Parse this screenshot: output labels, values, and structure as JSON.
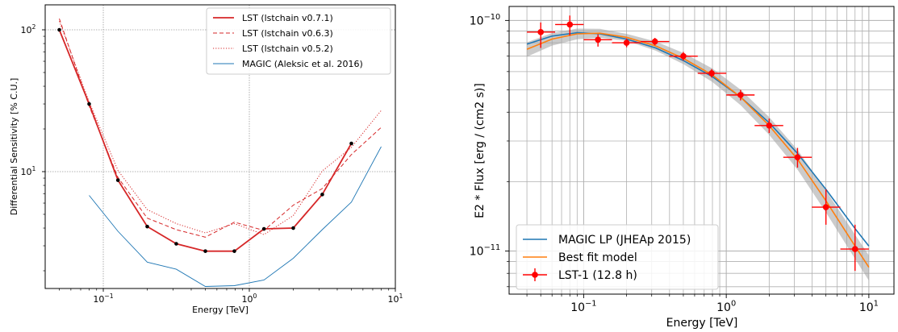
{
  "chart_data": [
    {
      "type": "line",
      "xlabel": "Energy [TeV]",
      "ylabel": "Differential Sensitivity [% C.U.]",
      "xscale": "log",
      "yscale": "log",
      "xlim": [
        0.04,
        10
      ],
      "ylim": [
        1.5,
        150
      ],
      "grid": true,
      "legend_position": "top-right",
      "x_ticks": [
        {
          "value": 0.1,
          "label": "10",
          "exp": "−1"
        },
        {
          "value": 1,
          "label": "10",
          "exp": "0"
        },
        {
          "value": 10,
          "label": "10",
          "exp": "1"
        }
      ],
      "y_ticks": [
        {
          "value": 10,
          "label": "10",
          "exp": "1"
        },
        {
          "value": 100,
          "label": "10",
          "exp": "2"
        }
      ],
      "series": [
        {
          "name": "LST (lstchain v0.7.1)",
          "color": "#d62728",
          "style": "solid",
          "markers": true,
          "x": [
            0.05,
            0.08,
            0.126,
            0.2,
            0.316,
            0.5,
            0.79,
            1.26,
            2.0,
            3.16,
            5.0
          ],
          "y": [
            100,
            30,
            8.7,
            4.1,
            3.1,
            2.75,
            2.75,
            3.95,
            4.0,
            6.9,
            15.8
          ]
        },
        {
          "name": "LST (lstchain v0.6.3)",
          "color": "#d62728",
          "style": "dashed",
          "markers": false,
          "x": [
            0.05,
            0.08,
            0.126,
            0.2,
            0.316,
            0.5,
            0.79,
            1.26,
            2.0,
            3.16,
            5.0,
            8.0
          ],
          "y": [
            120,
            29,
            9.1,
            4.7,
            3.9,
            3.45,
            4.4,
            3.85,
            5.8,
            7.6,
            13.2,
            20.5
          ]
        },
        {
          "name": "LST (lstchain v0.5.2)",
          "color": "#d62728",
          "style": "dotted",
          "markers": false,
          "x": [
            0.05,
            0.08,
            0.126,
            0.2,
            0.316,
            0.5,
            0.79,
            1.26,
            2.0,
            3.16,
            5.0,
            8.0
          ],
          "y": [
            115,
            31,
            10.2,
            5.4,
            4.3,
            3.7,
            4.3,
            3.6,
            4.9,
            10.1,
            14.8,
            27
          ]
        },
        {
          "name": "MAGIC (Aleksic et al. 2016)",
          "color": "#1f77b4",
          "style": "solid",
          "markers": false,
          "x": [
            0.08,
            0.126,
            0.2,
            0.316,
            0.5,
            0.79,
            1.26,
            2.0,
            3.16,
            5.0,
            8.0
          ],
          "y": [
            6.8,
            3.8,
            2.3,
            2.05,
            1.55,
            1.57,
            1.72,
            2.45,
            3.9,
            6.1,
            15
          ]
        }
      ]
    },
    {
      "type": "scatter",
      "xlabel": "Energy [TeV]",
      "ylabel": "E2 * Flux [erg / (cm2 s)]",
      "xscale": "log",
      "yscale": "log",
      "xlim": [
        0.03,
        15
      ],
      "ylim": [
        6.5e-12,
        1.15e-10
      ],
      "grid": true,
      "legend_position": "bottom-left",
      "x_ticks": [
        {
          "value": 0.1,
          "label": "10",
          "exp": "−1"
        },
        {
          "value": 1,
          "label": "10",
          "exp": "0"
        },
        {
          "value": 10,
          "label": "10",
          "exp": "1"
        }
      ],
      "y_ticks": [
        {
          "value": 1e-11,
          "label": "10",
          "exp": "−11"
        },
        {
          "value": 1e-10,
          "label": "10",
          "exp": "−10"
        }
      ],
      "series": [
        {
          "name": "MAGIC LP (JHEAp 2015)",
          "color": "#1f77b4",
          "kind": "curve",
          "x": [
            0.04,
            0.06,
            0.09,
            0.13,
            0.2,
            0.32,
            0.5,
            0.8,
            1.26,
            2.0,
            3.16,
            5.0,
            8.0,
            10.0
          ],
          "y": [
            7.9e-11,
            8.55e-11,
            8.85e-11,
            8.75e-11,
            8.3e-11,
            7.6e-11,
            6.7e-11,
            5.7e-11,
            4.65e-11,
            3.6e-11,
            2.65e-11,
            1.85e-11,
            1.25e-11,
            1.05e-11
          ]
        },
        {
          "name": "Best fit model",
          "color": "#ff7f0e",
          "kind": "curve",
          "x": [
            0.04,
            0.06,
            0.09,
            0.13,
            0.2,
            0.32,
            0.5,
            0.8,
            1.26,
            2.0,
            3.16,
            5.0,
            8.0,
            10.0
          ],
          "y": [
            7.5e-11,
            8.3e-11,
            8.75e-11,
            8.8e-11,
            8.45e-11,
            7.75e-11,
            6.85e-11,
            5.8e-11,
            4.65e-11,
            3.5e-11,
            2.5e-11,
            1.65e-11,
            1.05e-11,
            8.5e-12
          ]
        },
        {
          "name": "LST-1 (12.8 h)",
          "color": "#ff0000",
          "kind": "points",
          "x": [
            0.05,
            0.08,
            0.126,
            0.2,
            0.316,
            0.5,
            0.79,
            1.26,
            2.0,
            3.16,
            5.0,
            8.0
          ],
          "y": [
            8.9e-11,
            9.6e-11,
            8.25e-11,
            8e-11,
            8.1e-11,
            7e-11,
            5.9e-11,
            4.75e-11,
            3.5e-11,
            2.55e-11,
            1.55e-11,
            1.02e-11
          ],
          "xerr_low": [
            0.04,
            0.0631,
            0.1,
            0.158,
            0.251,
            0.398,
            0.631,
            1.0,
            1.58,
            2.51,
            3.98,
            6.31
          ],
          "xerr_high": [
            0.0631,
            0.1,
            0.158,
            0.251,
            0.398,
            0.631,
            1.0,
            1.58,
            2.51,
            3.98,
            6.31,
            10.0
          ],
          "yerr_low": [
            7.6e-11,
            8.6e-11,
            7.7e-11,
            7.65e-11,
            7.8e-11,
            6.7e-11,
            5.65e-11,
            4.5e-11,
            3.25e-11,
            2.3e-11,
            1.3e-11,
            8.2e-12
          ],
          "yerr_high": [
            9.8e-11,
            1.05e-10,
            8.7e-11,
            8.35e-11,
            8.4e-11,
            7.3e-11,
            6.15e-11,
            5e-11,
            3.75e-11,
            2.8e-11,
            1.85e-11,
            1.3e-11
          ]
        }
      ]
    }
  ]
}
